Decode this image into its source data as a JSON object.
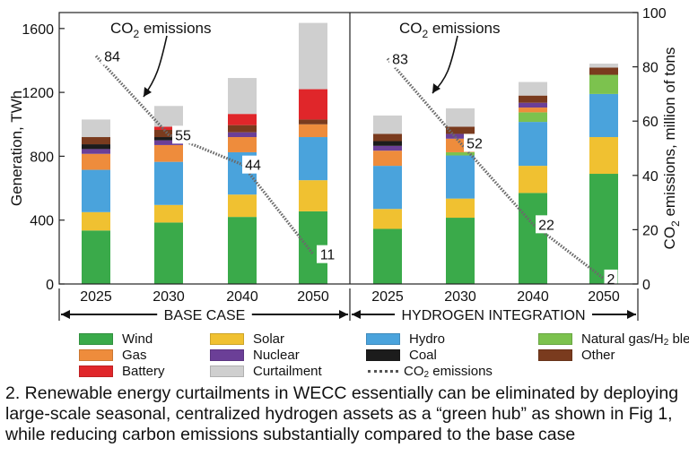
{
  "colors": {
    "Wind": "#3aaa4a",
    "Solar": "#f0c131",
    "Hydro": "#4aa3dc",
    "Natural gas/H2 blend": "#7cc24e",
    "Gas": "#ee8c3c",
    "Nuclear": "#6b3f97",
    "Coal": "#1c1c1c",
    "Other": "#7a3b1e",
    "Battery": "#e0262a",
    "Curtailment": "#cfcfcf",
    "CO2 emissions line": "#6a6a6a"
  },
  "legend": {
    "wind": "Wind",
    "solar": "Solar",
    "hydro": "Hydro",
    "natgas_prefix": "Natural gas/H",
    "natgas_sub": "2",
    "natgas_suffix": " blend",
    "gas": "Gas",
    "nuclear": "Nuclear",
    "coal": "Coal",
    "other": "Other",
    "battery": "Battery",
    "curtailment": "Curtailment",
    "co2_prefix": "CO",
    "co2_sub": "2",
    "co2_suffix": " emissions"
  },
  "caption": "2. Renewable energy curtailments in WECC essentially can be eliminated by deploying large-scale seasonal, centralized hydrogen assets as a “green hub” as shown in Fig 1, while reducing carbon emissions substantially compared to the base case",
  "chart_data": {
    "type": "bar",
    "stacked": true,
    "ylabel": "Generation, TWh",
    "y2label_prefix": "CO",
    "y2label_sub": "2",
    "y2label_suffix": " emissions, million of tons",
    "ylim": [
      0,
      1700
    ],
    "y2lim": [
      0,
      100
    ],
    "yticks": [
      0,
      400,
      800,
      1200,
      1600
    ],
    "y2ticks": [
      0,
      20,
      40,
      60,
      80,
      100
    ],
    "grid": false,
    "annotation_prefix": "CO",
    "annotation_sub": "2",
    "annotation_suffix": " emissions",
    "groups": [
      {
        "label": "BASE CASE",
        "years": [
          "2025",
          "2030",
          "2040",
          "2050"
        ],
        "bars": [
          {
            "Wind": 335,
            "Solar": 115,
            "Hydro": 265,
            "Natural gas/H2 blend": 0,
            "Gas": 100,
            "Nuclear": 30,
            "Coal": 30,
            "Other": 45,
            "Battery": 0,
            "Curtailment": 110
          },
          {
            "Wind": 385,
            "Solar": 110,
            "Hydro": 270,
            "Natural gas/H2 blend": 0,
            "Gas": 105,
            "Nuclear": 30,
            "Coal": 20,
            "Other": 45,
            "Battery": 20,
            "Curtailment": 130
          },
          {
            "Wind": 420,
            "Solar": 140,
            "Hydro": 265,
            "Natural gas/H2 blend": 0,
            "Gas": 95,
            "Nuclear": 30,
            "Coal": 0,
            "Other": 45,
            "Battery": 70,
            "Curtailment": 225
          },
          {
            "Wind": 455,
            "Solar": 195,
            "Hydro": 270,
            "Natural gas/H2 blend": 0,
            "Gas": 80,
            "Nuclear": 0,
            "Coal": 0,
            "Other": 30,
            "Battery": 190,
            "Curtailment": 415
          }
        ],
        "co2": [
          84,
          55,
          44,
          11
        ]
      },
      {
        "label": "HYDROGEN INTEGRATION",
        "years": [
          "2025",
          "2030",
          "2040",
          "2050"
        ],
        "bars": [
          {
            "Wind": 345,
            "Solar": 125,
            "Hydro": 270,
            "Natural gas/H2 blend": 0,
            "Gas": 95,
            "Nuclear": 30,
            "Coal": 30,
            "Other": 45,
            "Battery": 0,
            "Curtailment": 115
          },
          {
            "Wind": 415,
            "Solar": 120,
            "Hydro": 270,
            "Natural gas/H2 blend": 20,
            "Gas": 85,
            "Nuclear": 30,
            "Coal": 0,
            "Other": 45,
            "Battery": 0,
            "Curtailment": 115
          },
          {
            "Wind": 570,
            "Solar": 170,
            "Hydro": 275,
            "Natural gas/H2 blend": 60,
            "Gas": 30,
            "Nuclear": 30,
            "Coal": 0,
            "Other": 45,
            "Battery": 0,
            "Curtailment": 85
          },
          {
            "Wind": 690,
            "Solar": 230,
            "Hydro": 270,
            "Natural gas/H2 blend": 120,
            "Gas": 0,
            "Nuclear": 0,
            "Coal": 0,
            "Other": 45,
            "Battery": 0,
            "Curtailment": 25
          }
        ],
        "co2": [
          83,
          52,
          22,
          2
        ]
      }
    ],
    "stack_order": [
      "Wind",
      "Solar",
      "Hydro",
      "Natural gas/H2 blend",
      "Gas",
      "Nuclear",
      "Coal",
      "Other",
      "Battery",
      "Curtailment"
    ]
  }
}
